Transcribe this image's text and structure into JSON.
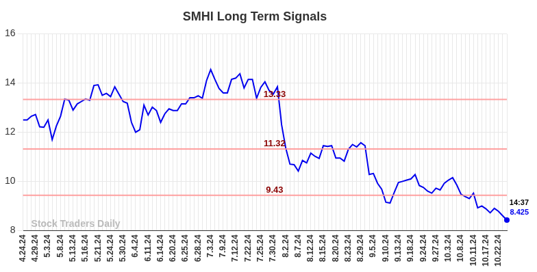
{
  "chart_data": {
    "type": "line",
    "title": "SMHI Long Term Signals",
    "categories": [
      "4.24.24",
      null,
      null,
      "4.29.24",
      null,
      null,
      "5.3.24",
      null,
      null,
      "5.8.24",
      null,
      null,
      "5.13.24",
      null,
      null,
      "5.16.24",
      null,
      null,
      "5.21.24",
      null,
      null,
      "5.24.24",
      null,
      null,
      "5.30.24",
      null,
      null,
      "6.4.24",
      null,
      null,
      "6.11.24",
      null,
      null,
      "6.14.24",
      null,
      null,
      "6.20.24",
      null,
      null,
      "6.25.24",
      null,
      null,
      "6.28.24",
      null,
      null,
      "7.3.24",
      null,
      null,
      "7.9.24",
      null,
      null,
      "7.12.24",
      null,
      null,
      "7.22.24",
      null,
      null,
      "7.25.24",
      null,
      null,
      "7.30.24",
      null,
      null,
      "8.2.24",
      null,
      null,
      "8.7.24",
      null,
      null,
      "8.12.24",
      null,
      null,
      "8.15.24",
      null,
      null,
      "8.20.24",
      null,
      null,
      "8.23.24",
      null,
      null,
      "8.29.24",
      null,
      null,
      "9.5.24",
      null,
      null,
      "9.10.24",
      null,
      null,
      "9.13.24",
      null,
      null,
      "9.18.24",
      null,
      null,
      "9.24.24",
      null,
      null,
      "9.27.24",
      null,
      null,
      "10.3.24",
      null,
      null,
      "10.8.24",
      null,
      null,
      "10.11.24",
      null,
      null,
      "10.17.24",
      null,
      null,
      "10.22.24",
      null,
      null
    ],
    "values": [
      12.5,
      12.5,
      12.65,
      12.72,
      12.22,
      12.2,
      12.5,
      11.7,
      12.25,
      12.65,
      13.35,
      13.3,
      12.9,
      13.15,
      13.25,
      13.35,
      13.3,
      13.9,
      13.93,
      13.5,
      13.58,
      13.45,
      13.85,
      13.55,
      13.25,
      13.18,
      12.4,
      12.0,
      12.1,
      13.1,
      12.7,
      13.02,
      12.88,
      12.4,
      12.75,
      12.95,
      12.88,
      12.88,
      13.15,
      13.15,
      13.4,
      13.4,
      13.48,
      13.38,
      14.1,
      14.55,
      14.15,
      13.78,
      13.6,
      13.6,
      14.15,
      14.2,
      14.38,
      13.8,
      14.15,
      14.15,
      13.38,
      13.82,
      14.05,
      13.7,
      13.55,
      13.85,
      12.3,
      11.35,
      10.7,
      10.68,
      10.42,
      10.85,
      10.75,
      11.15,
      11.02,
      10.93,
      11.45,
      11.42,
      11.45,
      10.95,
      10.95,
      10.82,
      11.3,
      11.5,
      11.4,
      11.57,
      11.45,
      10.28,
      10.32,
      9.92,
      9.68,
      9.15,
      9.12,
      9.55,
      9.95,
      10.0,
      10.05,
      10.1,
      10.28,
      9.83,
      9.75,
      9.6,
      9.52,
      9.72,
      9.65,
      9.92,
      10.05,
      10.15,
      9.85,
      9.48,
      9.38,
      9.3,
      9.52,
      8.92,
      9.0,
      8.88,
      8.72,
      8.9,
      8.78,
      8.6,
      8.425
    ],
    "color": "#0000ee",
    "ylim": [
      8,
      16
    ],
    "yticks": [
      8,
      10,
      12,
      14,
      16
    ],
    "grid": true,
    "reference_lines": [
      13.33,
      11.32,
      9.43
    ],
    "watermark": "Stock Traders Daily",
    "last_point": {
      "time": "14:37",
      "value": 8.425
    }
  }
}
